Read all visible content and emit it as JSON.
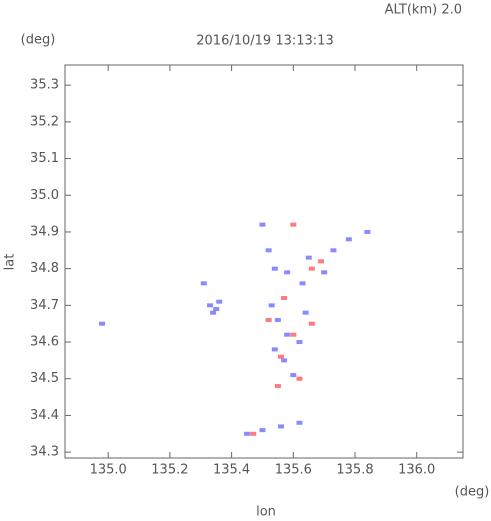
{
  "chart_data": {
    "type": "scatter",
    "title": "2016/10/19 13:13:13",
    "annotation": "ALT(km) 2.0",
    "y_unit": "(deg)",
    "x_unit": "(deg)",
    "xlabel": "lon",
    "ylabel": "lat",
    "xlim": [
      134.86,
      136.15
    ],
    "ylim": [
      34.284,
      35.355
    ],
    "xticks": [
      {
        "value": 135,
        "label": "135.0"
      },
      135.2,
      135.4,
      135.6,
      135.8,
      {
        "value": 136,
        "label": "136.0"
      }
    ],
    "yticks": [
      34.3,
      34.4,
      34.5,
      34.6,
      34.7,
      34.8,
      34.9,
      {
        "value": 35,
        "label": "35.0"
      },
      35.1,
      35.2,
      35.3
    ],
    "series": [
      {
        "color": "#8a8aff",
        "x": [
          134.98,
          135.33,
          135.35,
          135.36,
          135.34,
          135.31,
          135.5,
          135.52,
          135.54,
          135.58,
          135.65,
          135.7,
          135.73,
          135.78,
          135.84,
          135.63,
          135.53,
          135.55,
          135.58,
          135.62,
          135.57,
          135.6,
          135.54,
          135.64,
          135.45,
          135.5,
          135.56,
          135.62
        ],
        "values": [
          34.65,
          34.7,
          34.69,
          34.71,
          34.68,
          34.76,
          34.92,
          34.85,
          34.8,
          34.79,
          34.83,
          34.79,
          34.85,
          34.88,
          34.9,
          34.76,
          34.7,
          34.66,
          34.62,
          34.6,
          34.55,
          34.51,
          34.58,
          34.68,
          34.35,
          34.36,
          34.37,
          34.38
        ]
      },
      {
        "color": "#ff7a7a",
        "x": [
          135.6,
          135.66,
          135.57,
          135.52,
          135.6,
          135.66,
          135.56,
          135.55,
          135.62,
          135.47,
          135.69
        ],
        "values": [
          34.92,
          34.8,
          34.72,
          34.66,
          34.62,
          34.65,
          34.56,
          34.48,
          34.5,
          34.35,
          34.82
        ]
      }
    ]
  }
}
